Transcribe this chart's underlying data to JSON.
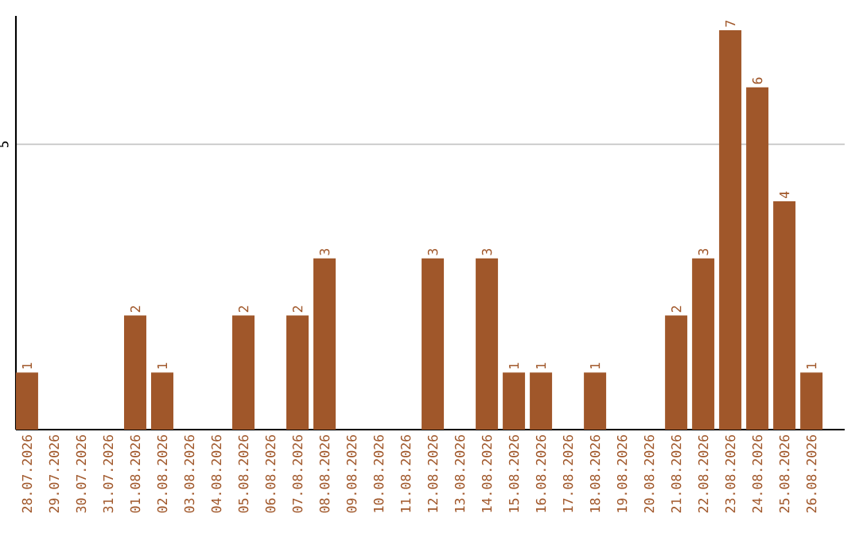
{
  "chart_data": {
    "type": "bar",
    "categories": [
      "28.07.2026",
      "29.07.2026",
      "30.07.2026",
      "31.07.2026",
      "01.08.2026",
      "02.08.2026",
      "03.08.2026",
      "04.08.2026",
      "05.08.2026",
      "06.08.2026",
      "07.08.2026",
      "08.08.2026",
      "09.08.2026",
      "10.08.2026",
      "11.08.2026",
      "12.08.2026",
      "13.08.2026",
      "14.08.2026",
      "15.08.2026",
      "16.08.2026",
      "17.08.2026",
      "18.08.2026",
      "19.08.2026",
      "20.08.2026",
      "21.08.2026",
      "22.08.2026",
      "23.08.2026",
      "24.08.2026",
      "25.08.2026",
      "26.08.2026"
    ],
    "values": [
      1,
      null,
      null,
      null,
      2,
      1,
      null,
      null,
      2,
      null,
      2,
      3,
      null,
      null,
      null,
      3,
      null,
      3,
      1,
      1,
      null,
      1,
      null,
      null,
      2,
      3,
      7,
      6,
      4,
      1
    ],
    "value_labels": [
      "1",
      null,
      null,
      null,
      "2",
      "1",
      null,
      null,
      "2",
      null,
      "2",
      "3",
      null,
      null,
      null,
      "3",
      null,
      "3",
      "1",
      "1",
      null,
      "1",
      null,
      null,
      "2",
      "3",
      "7",
      "6",
      "4",
      "1"
    ],
    "color": "#a0572a",
    "ylim": [
      0,
      7.25
    ],
    "yticks": [
      5
    ],
    "grid": "y"
  }
}
